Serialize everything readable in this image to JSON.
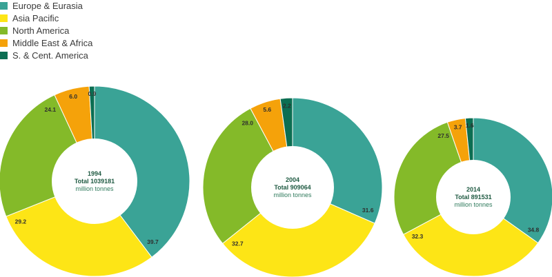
{
  "legend": [
    {
      "label": "Europe & Eurasia",
      "color": "#3aa396"
    },
    {
      "label": "Asia Pacific",
      "color": "#fde516"
    },
    {
      "label": "North America",
      "color": "#84ba29"
    },
    {
      "label": "Middle East & Africa",
      "color": "#f5a20a"
    },
    {
      "label": "S. & Cent. America",
      "color": "#0c6e52"
    }
  ],
  "chart_data": [
    {
      "type": "pie",
      "center_year": "1994",
      "center_total": "Total 1039181",
      "center_unit": "million tonnes",
      "series": [
        {
          "category": "Europe & Eurasia",
          "value": 39.7,
          "label": "39.7"
        },
        {
          "category": "Asia Pacific",
          "value": 29.2,
          "label": "29.2"
        },
        {
          "category": "North America",
          "value": 24.1,
          "label": "24.1"
        },
        {
          "category": "Middle East & Africa",
          "value": 6.0,
          "label": "6.0"
        },
        {
          "category": "S. & Cent. America",
          "value": 0.9,
          "label": "0.9"
        }
      ]
    },
    {
      "type": "pie",
      "center_year": "2004",
      "center_total": "Total 909064",
      "center_unit": "million tonnes",
      "series": [
        {
          "category": "Europe & Eurasia",
          "value": 31.6,
          "label": "31.6"
        },
        {
          "category": "Asia Pacific",
          "value": 32.7,
          "label": "32.7"
        },
        {
          "category": "North America",
          "value": 28.0,
          "label": "28.0"
        },
        {
          "category": "Middle East & Africa",
          "value": 5.6,
          "label": "5.6"
        },
        {
          "category": "S. & Cent. America",
          "value": 2.2,
          "label": "2.2"
        }
      ]
    },
    {
      "type": "pie",
      "center_year": "2014",
      "center_total": "Total 891531",
      "center_unit": "million tonnes",
      "series": [
        {
          "category": "Europe & Eurasia",
          "value": 34.8,
          "label": "34.8"
        },
        {
          "category": "Asia Pacific",
          "value": 32.3,
          "label": "32.3"
        },
        {
          "category": "North America",
          "value": 27.5,
          "label": "27.5"
        },
        {
          "category": "Middle East & Africa",
          "value": 3.7,
          "label": "3.7"
        },
        {
          "category": "S. & Cent. America",
          "value": 1.6,
          "label": "1.6"
        }
      ]
    }
  ]
}
